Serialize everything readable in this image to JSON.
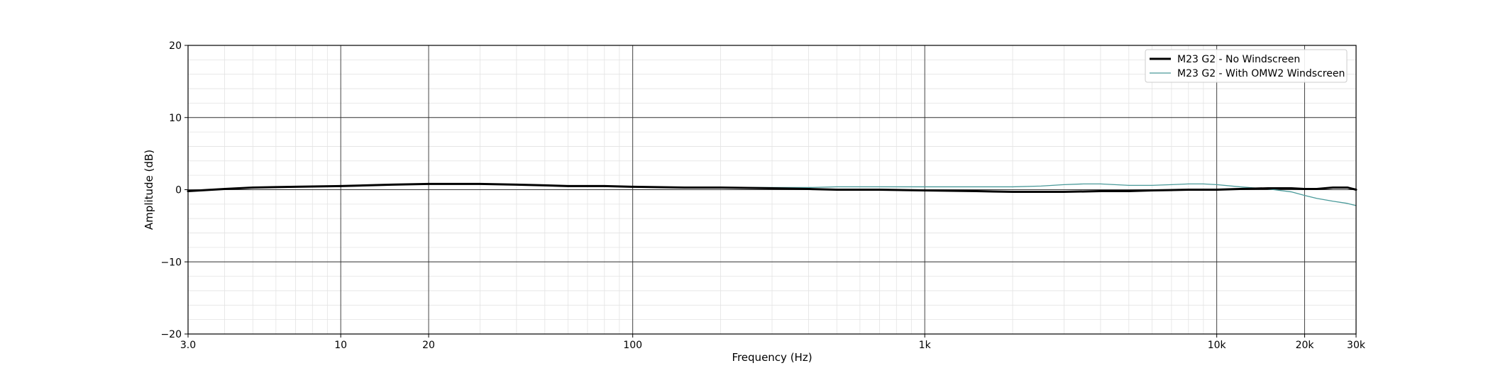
{
  "chart_data": {
    "type": "line",
    "title": "",
    "xlabel": "Frequency (Hz)",
    "ylabel": "Amplitude (dB)",
    "xscale": "log",
    "xlim": [
      3,
      30000
    ],
    "ylim": [
      -20,
      20
    ],
    "x_ticks": [
      {
        "value": 3,
        "label": "3.0"
      },
      {
        "value": 10,
        "label": "10"
      },
      {
        "value": 20,
        "label": "20"
      },
      {
        "value": 100,
        "label": "100"
      },
      {
        "value": 1000,
        "label": "1k"
      },
      {
        "value": 10000,
        "label": "10k"
      },
      {
        "value": 20000,
        "label": "20k"
      },
      {
        "value": 30000,
        "label": "30k"
      }
    ],
    "y_ticks": [
      {
        "value": 20,
        "label": "20"
      },
      {
        "value": 10,
        "label": "10"
      },
      {
        "value": 0,
        "label": "0"
      },
      {
        "value": -10,
        "label": "−10"
      },
      {
        "value": -20,
        "label": "−20"
      }
    ],
    "grid": {
      "major": true,
      "minor": true
    },
    "legend_position": "top-right",
    "series": [
      {
        "name": "M23 G2 - No Windscreen",
        "color": "#000000",
        "style": "thick",
        "x": [
          3,
          4,
          5,
          7,
          10,
          15,
          20,
          25,
          30,
          40,
          50,
          60,
          80,
          100,
          150,
          200,
          300,
          400,
          500,
          700,
          1000,
          1500,
          2000,
          2500,
          3000,
          4000,
          5000,
          6000,
          8000,
          10000,
          12000,
          15000,
          18000,
          20000,
          22000,
          25000,
          28000,
          30000
        ],
        "y": [
          -0.2,
          0.1,
          0.3,
          0.4,
          0.5,
          0.7,
          0.8,
          0.8,
          0.8,
          0.7,
          0.6,
          0.5,
          0.5,
          0.4,
          0.3,
          0.3,
          0.2,
          0.1,
          0.0,
          0.0,
          -0.1,
          -0.2,
          -0.3,
          -0.3,
          -0.3,
          -0.2,
          -0.2,
          -0.1,
          0.0,
          0.0,
          0.1,
          0.2,
          0.2,
          0.1,
          0.1,
          0.3,
          0.3,
          0.0
        ]
      },
      {
        "name": "M23 G2 - With OMW2 Windscreen",
        "color": "#4a9a9a",
        "style": "thin",
        "x": [
          3,
          4,
          5,
          7,
          10,
          15,
          20,
          25,
          30,
          40,
          50,
          60,
          80,
          100,
          150,
          200,
          300,
          400,
          500,
          700,
          1000,
          1500,
          2000,
          2500,
          3000,
          3500,
          4000,
          5000,
          6000,
          7000,
          8000,
          9000,
          10000,
          12000,
          15000,
          18000,
          20000,
          22000,
          25000,
          28000,
          30000
        ],
        "y": [
          -0.2,
          0.1,
          0.3,
          0.4,
          0.5,
          0.7,
          0.8,
          0.8,
          0.8,
          0.7,
          0.6,
          0.5,
          0.5,
          0.4,
          0.3,
          0.3,
          0.3,
          0.3,
          0.4,
          0.4,
          0.4,
          0.4,
          0.4,
          0.5,
          0.7,
          0.8,
          0.8,
          0.6,
          0.6,
          0.7,
          0.8,
          0.8,
          0.7,
          0.4,
          0.1,
          -0.3,
          -0.8,
          -1.2,
          -1.6,
          -1.9,
          -2.2
        ]
      }
    ]
  }
}
